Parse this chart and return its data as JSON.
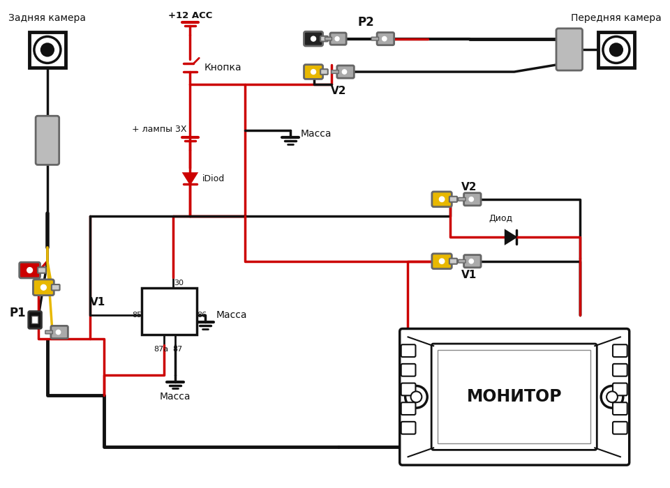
{
  "bg_color": "#ffffff",
  "BLACK": "#111111",
  "RED": "#cc0000",
  "YELLOW": "#e8b800",
  "GRAY": "#aaaaaa",
  "DGRAY": "#666666",
  "labels": {
    "rear_camera": "Задняя камера",
    "front_camera": "Передняя камера",
    "plus12acc": "+12 ACC",
    "knopka": "Кнопка",
    "massa1": "Масса",
    "massa2": "Масса",
    "massa3": "Масса",
    "lampy": "+ лампы 3Х",
    "idiod": "iDiod",
    "diod": "Диод",
    "monitor": "МОНИТОР",
    "V1": "V1",
    "V2": "V2",
    "P1": "P1",
    "P2": "P2",
    "r30": "30",
    "r85": "85",
    "r86": "86",
    "r87a": "87a",
    "r87": "87"
  }
}
